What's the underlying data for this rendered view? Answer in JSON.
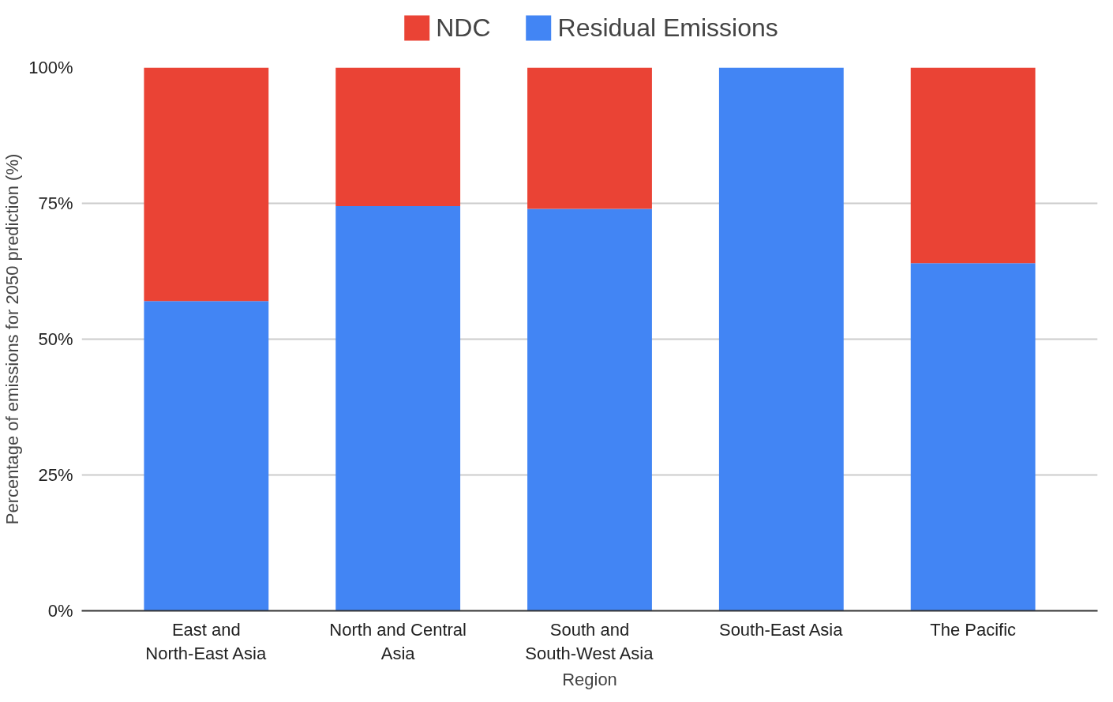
{
  "chart_data": {
    "type": "bar",
    "stacked": true,
    "xlabel": "Region",
    "ylabel": "Percentage of emissions for 2050 prediction (%)",
    "categories": [
      "East and North-East Asia",
      "North and Central Asia",
      "South and South-West Asia",
      "South-East Asia",
      "The Pacific"
    ],
    "series": [
      {
        "name": "Residual Emissions",
        "color": "#4285f4",
        "values": [
          57,
          74.5,
          74,
          100,
          64
        ]
      },
      {
        "name": "NDC",
        "color": "#ea4335",
        "values": [
          43,
          25.5,
          26,
          0,
          36
        ]
      }
    ],
    "ylim": [
      0,
      100
    ],
    "yticks": [
      {
        "value": 0,
        "label": "0%"
      },
      {
        "value": 25,
        "label": "25%"
      },
      {
        "value": 50,
        "label": "50%"
      },
      {
        "value": 75,
        "label": "75%"
      },
      {
        "value": 100,
        "label": "100%"
      }
    ],
    "grid": "y",
    "legend": "top"
  }
}
